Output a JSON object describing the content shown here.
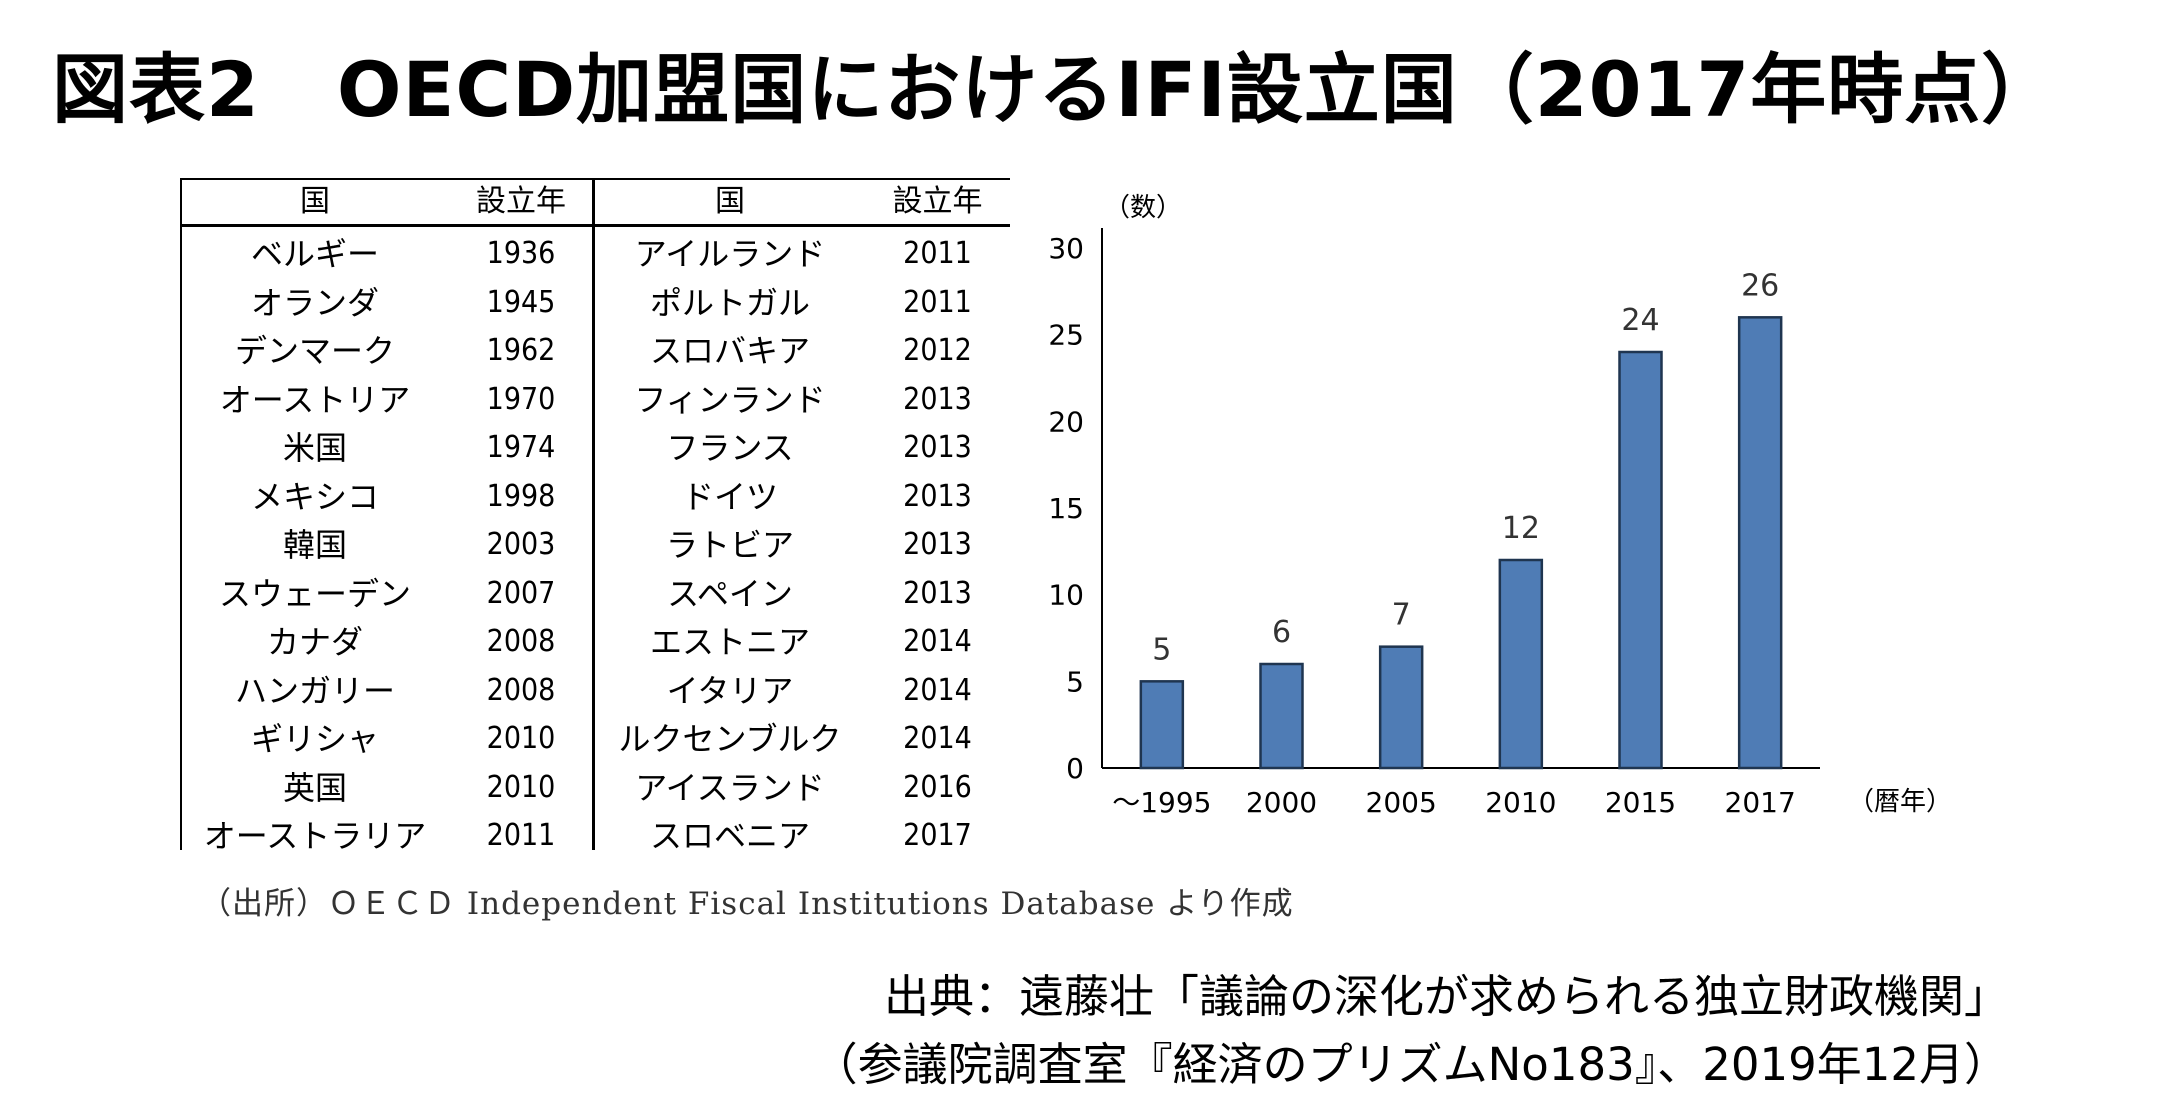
{
  "title": "図表2　OECD加盟国におけるIFI設立国（2017年時点）",
  "table": {
    "col_headers": [
      "国",
      "設立年",
      "国",
      "設立年"
    ],
    "left_rows": [
      {
        "country": "ベルギー",
        "year": "1936"
      },
      {
        "country": "オランダ",
        "year": "1945"
      },
      {
        "country": "デンマーク",
        "year": "1962"
      },
      {
        "country": "オーストリア",
        "year": "1970"
      },
      {
        "country": "米国",
        "year": "1974"
      },
      {
        "country": "メキシコ",
        "year": "1998"
      },
      {
        "country": "韓国",
        "year": "2003"
      },
      {
        "country": "スウェーデン",
        "year": "2007"
      },
      {
        "country": "カナダ",
        "year": "2008"
      },
      {
        "country": "ハンガリー",
        "year": "2008"
      },
      {
        "country": "ギリシャ",
        "year": "2010"
      },
      {
        "country": "英国",
        "year": "2010"
      },
      {
        "country": "オーストラリア",
        "year": "2011"
      }
    ],
    "right_rows": [
      {
        "country": "アイルランド",
        "year": "2011"
      },
      {
        "country": "ポルトガル",
        "year": "2011"
      },
      {
        "country": "スロバキア",
        "year": "2012"
      },
      {
        "country": "フィンランド",
        "year": "2013"
      },
      {
        "country": "フランス",
        "year": "2013"
      },
      {
        "country": "ドイツ",
        "year": "2013"
      },
      {
        "country": "ラトビア",
        "year": "2013"
      },
      {
        "country": "スペイン",
        "year": "2013"
      },
      {
        "country": "エストニア",
        "year": "2014"
      },
      {
        "country": "イタリア",
        "year": "2014"
      },
      {
        "country": "ルクセンブルク",
        "year": "2014"
      },
      {
        "country": "アイスランド",
        "year": "2016"
      },
      {
        "country": "スロベニア",
        "year": "2017"
      }
    ]
  },
  "table_source": "（出所）ＯＥＣＤ Independent Fiscal Institutions Database より作成",
  "chart_data": {
    "type": "bar",
    "categories": [
      "～1995",
      "2000",
      "2005",
      "2010",
      "2015",
      "2017"
    ],
    "values": [
      5,
      6,
      7,
      12,
      24,
      26
    ],
    "data_labels": [
      "5",
      "6",
      "7",
      "12",
      "24",
      "26"
    ],
    "ylabel": "（数）",
    "xlabel": "（暦年）",
    "ylim": [
      0,
      30
    ],
    "yticks": [
      "0",
      "5",
      "10",
      "15",
      "20",
      "25",
      "30"
    ],
    "grid": false,
    "bar_color": "#4F7CB5",
    "bar_edge_color": "#1F3550"
  },
  "citation": {
    "line1": "出典：遠藤壮「議論の深化が求められる独立財政機関」",
    "line2": "（参議院調査室『経済のプリズムNo183』、2019年12月）"
  }
}
